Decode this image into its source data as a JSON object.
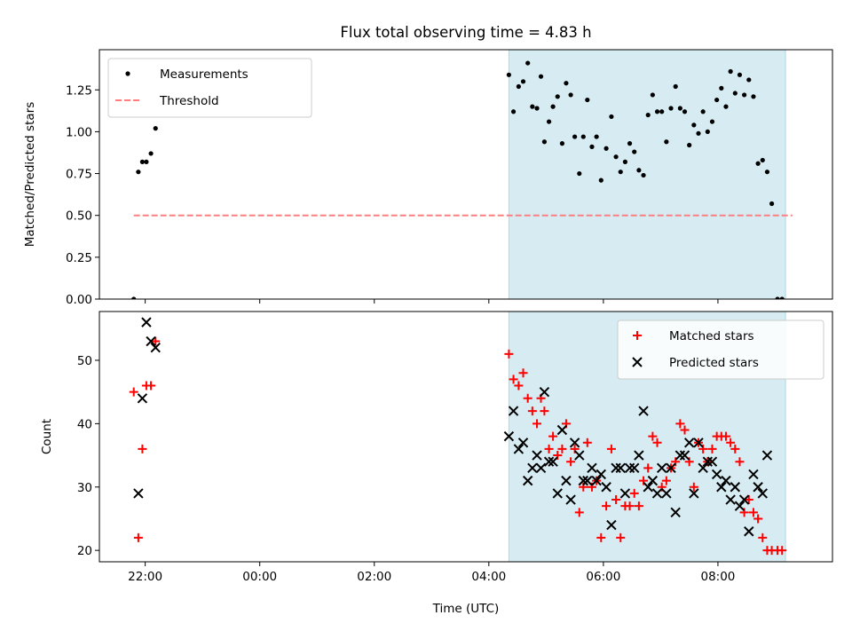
{
  "figure": {
    "title": "Flux total observing time = 4.83 h",
    "xlabel": "Time (UTC)"
  },
  "colors": {
    "shade": "#add8e6",
    "threshold": "#ff7f7f",
    "measurement": "#000000",
    "matched": "#ff0000",
    "predicted": "#000000"
  },
  "chart_data": [
    {
      "type": "scatter",
      "title": "Flux total observing time = 4.83 h",
      "xlabel": "",
      "ylabel": "Matched/Predicted stars",
      "x_unit": "hours",
      "x_ticks": [
        {
          "value": -2,
          "label": ""
        },
        {
          "value": 0,
          "label": ""
        },
        {
          "value": 2,
          "label": ""
        },
        {
          "value": 4,
          "label": ""
        },
        {
          "value": 6,
          "label": ""
        },
        {
          "value": 8,
          "label": ""
        }
      ],
      "xlim": [
        -2.8,
        10.0
      ],
      "ylim": [
        0,
        1.49
      ],
      "y_ticks": [
        {
          "value": 0,
          "label": "0.00"
        },
        {
          "value": 0.25,
          "label": "0.25"
        },
        {
          "value": 0.5,
          "label": "0.50"
        },
        {
          "value": 0.75,
          "label": "0.75"
        },
        {
          "value": 1.0,
          "label": "1.00"
        },
        {
          "value": 1.25,
          "label": "1.25"
        }
      ],
      "shaded_span": [
        4.35,
        9.18
      ],
      "legend": {
        "placement": "upper-left",
        "entries": [
          "Measurements",
          "Threshold"
        ]
      },
      "series": [
        {
          "name": "Measurements",
          "marker": "dot",
          "points": [
            [
              -2.2,
              0.0
            ],
            [
              -2.12,
              0.76
            ],
            [
              -2.05,
              0.82
            ],
            [
              -1.98,
              0.82
            ],
            [
              -1.9,
              0.87
            ],
            [
              -1.82,
              1.02
            ],
            [
              4.35,
              1.34
            ],
            [
              4.43,
              1.12
            ],
            [
              4.52,
              1.27
            ],
            [
              4.6,
              1.3
            ],
            [
              4.68,
              1.41
            ],
            [
              4.76,
              1.15
            ],
            [
              4.84,
              1.14
            ],
            [
              4.91,
              1.33
            ],
            [
              4.97,
              0.94
            ],
            [
              5.05,
              1.06
            ],
            [
              5.12,
              1.15
            ],
            [
              5.2,
              1.21
            ],
            [
              5.28,
              0.93
            ],
            [
              5.35,
              1.29
            ],
            [
              5.43,
              1.22
            ],
            [
              5.5,
              0.97
            ],
            [
              5.58,
              0.75
            ],
            [
              5.65,
              0.97
            ],
            [
              5.72,
              1.19
            ],
            [
              5.8,
              0.91
            ],
            [
              5.88,
              0.97
            ],
            [
              5.96,
              0.71
            ],
            [
              6.05,
              0.9
            ],
            [
              6.14,
              1.09
            ],
            [
              6.22,
              0.85
            ],
            [
              6.3,
              0.76
            ],
            [
              6.38,
              0.82
            ],
            [
              6.46,
              0.93
            ],
            [
              6.54,
              0.88
            ],
            [
              6.62,
              0.77
            ],
            [
              6.7,
              0.74
            ],
            [
              6.78,
              1.1
            ],
            [
              6.86,
              1.22
            ],
            [
              6.94,
              1.12
            ],
            [
              7.02,
              1.12
            ],
            [
              7.1,
              0.94
            ],
            [
              7.18,
              1.14
            ],
            [
              7.26,
              1.27
            ],
            [
              7.34,
              1.14
            ],
            [
              7.42,
              1.12
            ],
            [
              7.5,
              0.92
            ],
            [
              7.58,
              1.04
            ],
            [
              7.66,
              0.99
            ],
            [
              7.74,
              1.12
            ],
            [
              7.82,
              1.0
            ],
            [
              7.9,
              1.06
            ],
            [
              7.98,
              1.19
            ],
            [
              8.06,
              1.26
            ],
            [
              8.14,
              1.15
            ],
            [
              8.22,
              1.36
            ],
            [
              8.3,
              1.23
            ],
            [
              8.38,
              1.34
            ],
            [
              8.46,
              1.22
            ],
            [
              8.54,
              1.31
            ],
            [
              8.62,
              1.21
            ],
            [
              8.7,
              0.81
            ],
            [
              8.78,
              0.83
            ],
            [
              8.86,
              0.76
            ],
            [
              8.94,
              0.57
            ],
            [
              9.04,
              0.0
            ],
            [
              9.12,
              0.0
            ]
          ]
        },
        {
          "name": "Threshold",
          "marker": "dashed-line",
          "points": [
            [
              -2.2,
              0.5
            ],
            [
              9.3,
              0.5
            ]
          ]
        }
      ]
    },
    {
      "type": "scatter",
      "xlabel": "Time (UTC)",
      "ylabel": "Count",
      "x_unit": "hours",
      "x_ticks": [
        {
          "value": -2,
          "label": "22:00"
        },
        {
          "value": 0,
          "label": "00:00"
        },
        {
          "value": 2,
          "label": "02:00"
        },
        {
          "value": 4,
          "label": "04:00"
        },
        {
          "value": 6,
          "label": "06:00"
        },
        {
          "value": 8,
          "label": "08:00"
        }
      ],
      "xlim": [
        -2.8,
        10.0
      ],
      "ylim": [
        18.2,
        57.7
      ],
      "y_ticks": [
        {
          "value": 20,
          "label": "20"
        },
        {
          "value": 30,
          "label": "30"
        },
        {
          "value": 40,
          "label": "40"
        },
        {
          "value": 50,
          "label": "50"
        }
      ],
      "shaded_span": [
        4.35,
        9.18
      ],
      "legend": {
        "placement": "upper-right",
        "entries": [
          "Matched stars",
          "Predicted stars"
        ]
      },
      "series": [
        {
          "name": "Matched stars",
          "marker": "plus",
          "points": [
            [
              -2.2,
              45
            ],
            [
              -2.12,
              22
            ],
            [
              -2.05,
              36
            ],
            [
              -1.98,
              46
            ],
            [
              -1.9,
              46
            ],
            [
              -1.82,
              53
            ],
            [
              4.35,
              51
            ],
            [
              4.43,
              47
            ],
            [
              4.52,
              46
            ],
            [
              4.6,
              48
            ],
            [
              4.68,
              44
            ],
            [
              4.76,
              42
            ],
            [
              4.84,
              40
            ],
            [
              4.91,
              44
            ],
            [
              4.97,
              42
            ],
            [
              5.05,
              36
            ],
            [
              5.12,
              38
            ],
            [
              5.2,
              35
            ],
            [
              5.28,
              36
            ],
            [
              5.35,
              40
            ],
            [
              5.43,
              34
            ],
            [
              5.5,
              36
            ],
            [
              5.58,
              26
            ],
            [
              5.65,
              30
            ],
            [
              5.72,
              37
            ],
            [
              5.8,
              30
            ],
            [
              5.88,
              31
            ],
            [
              5.96,
              22
            ],
            [
              6.05,
              27
            ],
            [
              6.14,
              36
            ],
            [
              6.22,
              28
            ],
            [
              6.3,
              22
            ],
            [
              6.38,
              27
            ],
            [
              6.46,
              27
            ],
            [
              6.54,
              29
            ],
            [
              6.62,
              27
            ],
            [
              6.7,
              31
            ],
            [
              6.78,
              33
            ],
            [
              6.86,
              38
            ],
            [
              6.94,
              37
            ],
            [
              7.02,
              30
            ],
            [
              7.1,
              31
            ],
            [
              7.18,
              33
            ],
            [
              7.26,
              34
            ],
            [
              7.34,
              40
            ],
            [
              7.42,
              39
            ],
            [
              7.5,
              34
            ],
            [
              7.58,
              30
            ],
            [
              7.66,
              37
            ],
            [
              7.74,
              36
            ],
            [
              7.82,
              34
            ],
            [
              7.9,
              36
            ],
            [
              7.98,
              38
            ],
            [
              8.06,
              38
            ],
            [
              8.14,
              38
            ],
            [
              8.22,
              37
            ],
            [
              8.3,
              36
            ],
            [
              8.38,
              34
            ],
            [
              8.46,
              26
            ],
            [
              8.54,
              28
            ],
            [
              8.62,
              26
            ],
            [
              8.7,
              25
            ],
            [
              8.78,
              22
            ],
            [
              8.86,
              20
            ],
            [
              8.94,
              20
            ],
            [
              9.04,
              20
            ],
            [
              9.12,
              20
            ]
          ]
        },
        {
          "name": "Predicted stars",
          "marker": "x",
          "points": [
            [
              -2.12,
              29
            ],
            [
              -2.05,
              44
            ],
            [
              -1.98,
              56
            ],
            [
              -1.9,
              53
            ],
            [
              -1.82,
              52
            ],
            [
              4.35,
              38
            ],
            [
              4.43,
              42
            ],
            [
              4.52,
              36
            ],
            [
              4.6,
              37
            ],
            [
              4.68,
              31
            ],
            [
              4.76,
              33
            ],
            [
              4.84,
              35
            ],
            [
              4.91,
              33
            ],
            [
              4.97,
              45
            ],
            [
              5.05,
              34
            ],
            [
              5.12,
              34
            ],
            [
              5.2,
              29
            ],
            [
              5.28,
              39
            ],
            [
              5.35,
              31
            ],
            [
              5.43,
              28
            ],
            [
              5.5,
              37
            ],
            [
              5.58,
              35
            ],
            [
              5.65,
              31
            ],
            [
              5.72,
              31
            ],
            [
              5.8,
              33
            ],
            [
              5.88,
              31
            ],
            [
              5.96,
              32
            ],
            [
              6.05,
              30
            ],
            [
              6.14,
              24
            ],
            [
              6.22,
              33
            ],
            [
              6.3,
              33
            ],
            [
              6.38,
              29
            ],
            [
              6.46,
              33
            ],
            [
              6.54,
              33
            ],
            [
              6.62,
              35
            ],
            [
              6.7,
              42
            ],
            [
              6.78,
              30
            ],
            [
              6.86,
              31
            ],
            [
              6.94,
              29
            ],
            [
              7.02,
              33
            ],
            [
              7.1,
              29
            ],
            [
              7.18,
              33
            ],
            [
              7.26,
              26
            ],
            [
              7.34,
              35
            ],
            [
              7.42,
              35
            ],
            [
              7.5,
              37
            ],
            [
              7.58,
              29
            ],
            [
              7.66,
              37
            ],
            [
              7.74,
              33
            ],
            [
              7.82,
              34
            ],
            [
              7.9,
              34
            ],
            [
              7.98,
              32
            ],
            [
              8.06,
              30
            ],
            [
              8.14,
              31
            ],
            [
              8.22,
              28
            ],
            [
              8.3,
              30
            ],
            [
              8.38,
              27
            ],
            [
              8.46,
              28
            ],
            [
              8.54,
              23
            ],
            [
              8.62,
              32
            ],
            [
              8.7,
              30
            ],
            [
              8.78,
              29
            ],
            [
              8.86,
              35
            ]
          ]
        }
      ]
    }
  ]
}
